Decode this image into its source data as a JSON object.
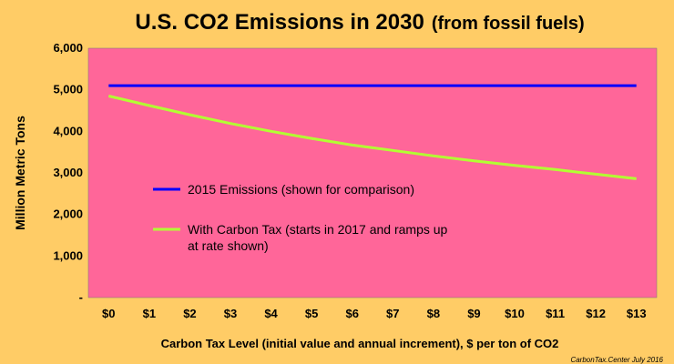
{
  "chart_data": {
    "type": "line",
    "title": "U.S. CO2 Emissions in 2030",
    "title_suffix": "(from fossil fuels)",
    "xlabel": "Carbon Tax Level (initial value and annual increment), $ per ton of CO2",
    "ylabel": "Million Metric Tons",
    "categories": [
      "$0",
      "$1",
      "$2",
      "$3",
      "$4",
      "$5",
      "$6",
      "$7",
      "$8",
      "$9",
      "$10",
      "$11",
      "$12",
      "$13"
    ],
    "y_ticks": [
      "-",
      "1,000",
      "2,000",
      "3,000",
      "4,000",
      "5,000",
      "6,000"
    ],
    "ylim": [
      0,
      6000
    ],
    "grid": false,
    "plot_background": "#FF6699",
    "page_background": "#FFCC66",
    "series": [
      {
        "name": "2015 Emissions (shown for comparison)",
        "color": "#0000FF",
        "values": [
          5100,
          5100,
          5100,
          5100,
          5100,
          5100,
          5100,
          5100,
          5100,
          5100,
          5100,
          5100,
          5100,
          5100
        ]
      },
      {
        "name": "With Carbon Tax (starts in 2017 and ramps up at rate shown)",
        "name_lines": [
          "With Carbon Tax (starts in 2017 and ramps up",
          "at rate shown)"
        ],
        "color": "#B2FF33",
        "values": [
          4850,
          4620,
          4400,
          4190,
          4000,
          3830,
          3670,
          3540,
          3410,
          3290,
          3180,
          3080,
          2970,
          2860
        ]
      }
    ],
    "credit": "CarbonTax.Center July 2016"
  }
}
